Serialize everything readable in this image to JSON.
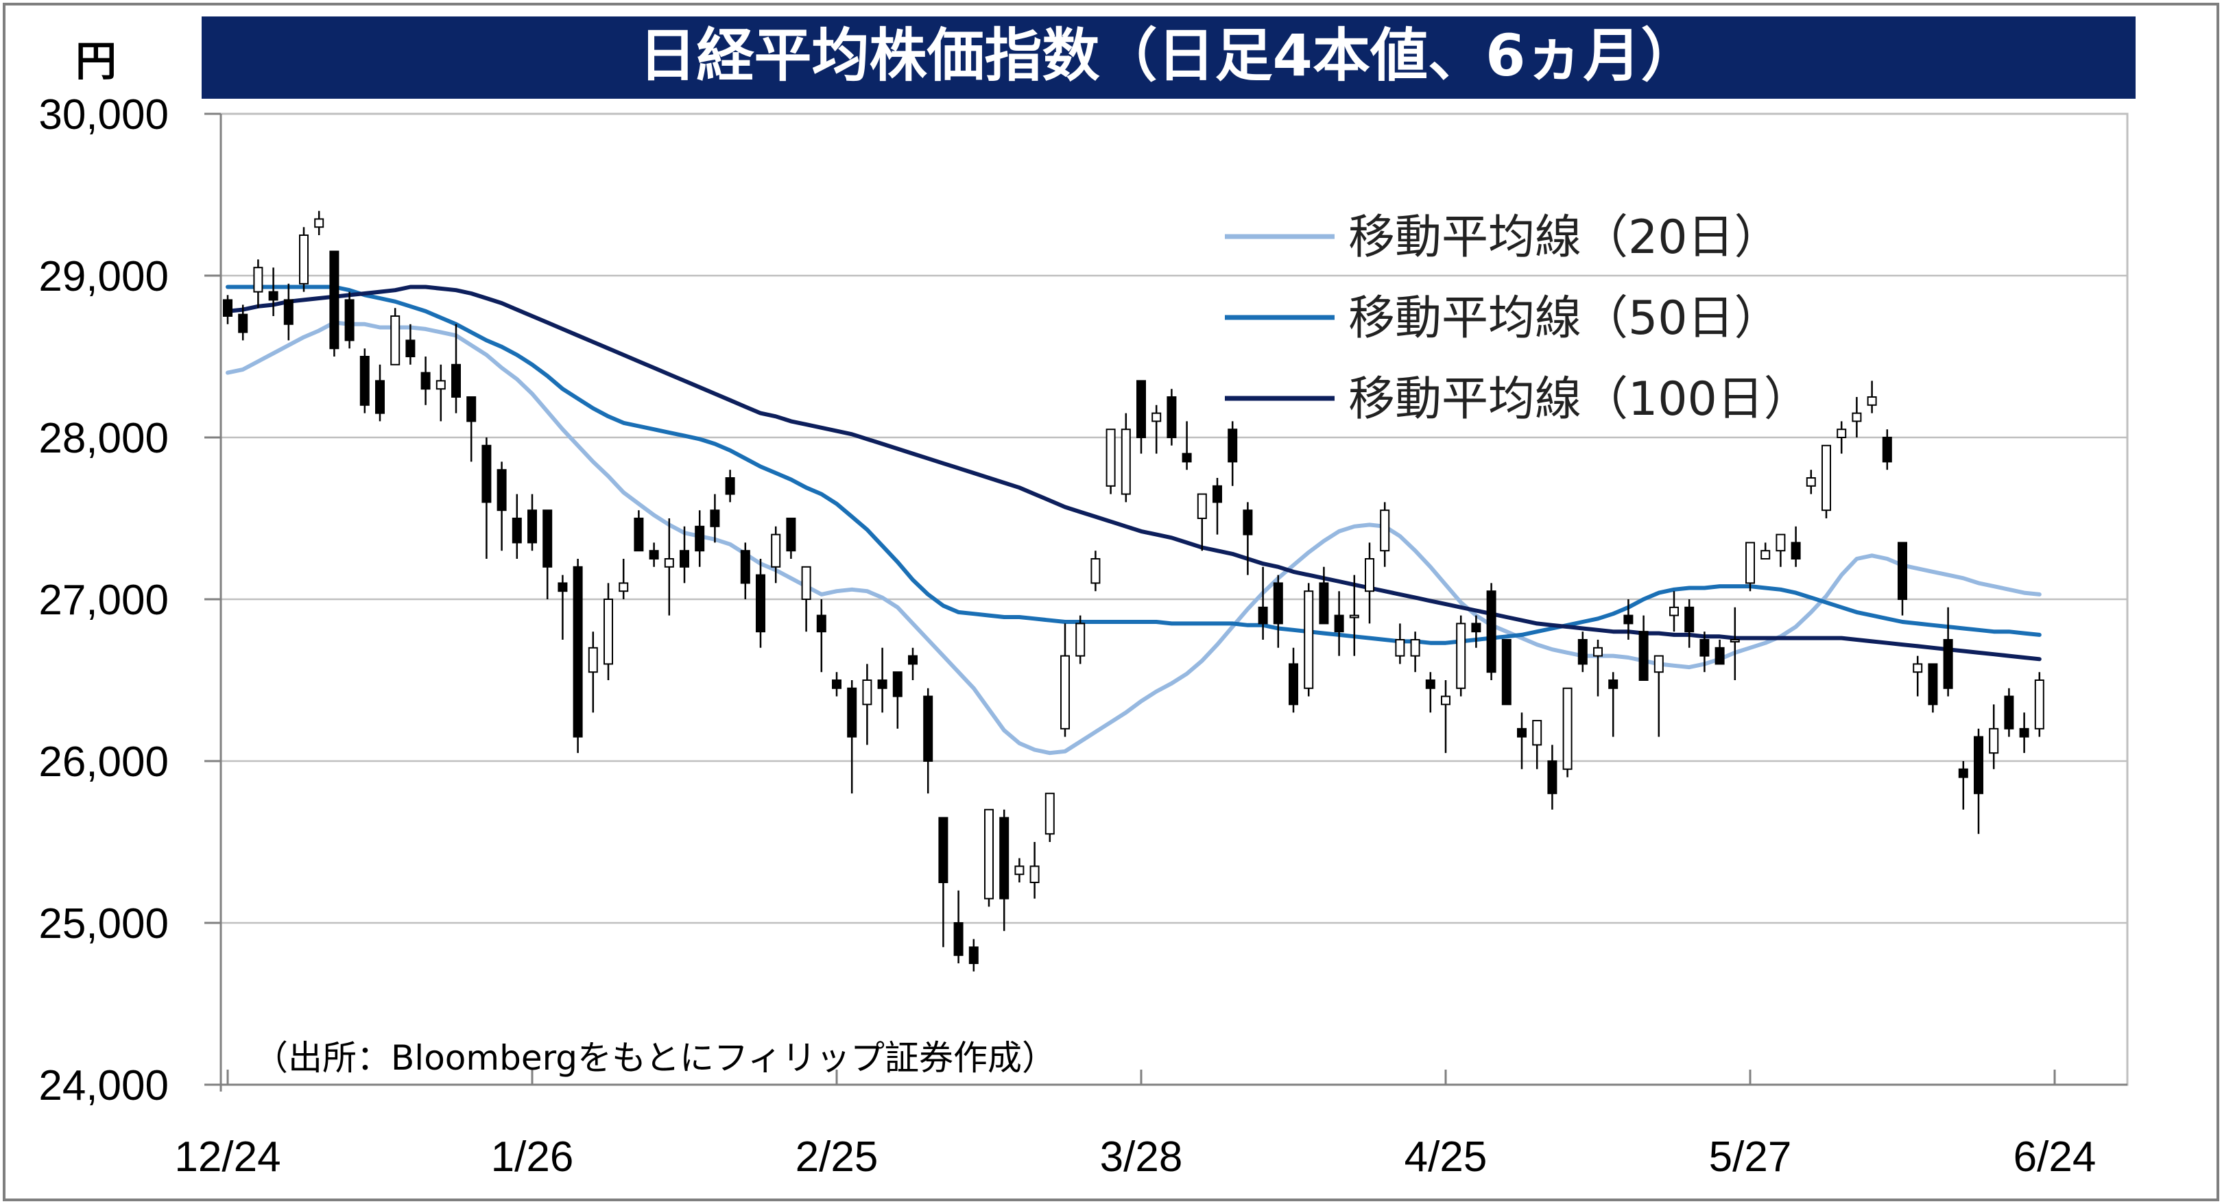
{
  "chart_data": {
    "type": "candlestick",
    "title": "日経平均株価指数（日足4本値、6ヵ月）",
    "unit": "円",
    "source": "（出所：Bloombergをもとにフィリップ証券作成）",
    "ylim": [
      24000,
      30000
    ],
    "yticks": [
      "30,000",
      "29,000",
      "28,000",
      "27,000",
      "26,000",
      "25,000",
      "24,000"
    ],
    "ytick_values": [
      30000,
      29000,
      28000,
      27000,
      26000,
      25000,
      24000
    ],
    "xticks": [
      "12/24",
      "1/26",
      "2/25",
      "3/28",
      "4/25",
      "5/27",
      "6/24"
    ],
    "xtick_index": [
      0,
      20,
      40,
      60,
      80,
      100,
      120
    ],
    "grid": true,
    "legend_position": "top-right",
    "colors": {
      "title_bg": "#0b2566",
      "title_text": "#ffffff",
      "ma20": "#96b8e0",
      "ma50": "#1a6fb5",
      "ma100": "#0d1f5c",
      "up_fill": "#ffffff",
      "down_fill": "#000000",
      "grid": "#bfbfbf",
      "axis": "#808080"
    },
    "candles": [
      [
        28850,
        28880,
        28700,
        28750
      ],
      [
        28760,
        28820,
        28600,
        28650
      ],
      [
        28900,
        29100,
        28800,
        29050
      ],
      [
        28900,
        29050,
        28750,
        28850
      ],
      [
        28850,
        28950,
        28600,
        28700
      ],
      [
        28950,
        29300,
        28900,
        29250
      ],
      [
        29300,
        29400,
        29250,
        29350
      ],
      [
        29150,
        29150,
        28500,
        28550
      ],
      [
        28850,
        28900,
        28550,
        28600
      ],
      [
        28500,
        28550,
        28150,
        28200
      ],
      [
        28350,
        28450,
        28100,
        28150
      ],
      [
        28450,
        28800,
        28450,
        28750
      ],
      [
        28600,
        28700,
        28450,
        28500
      ],
      [
        28400,
        28500,
        28200,
        28300
      ],
      [
        28300,
        28450,
        28100,
        28350
      ],
      [
        28450,
        28700,
        28150,
        28250
      ],
      [
        28250,
        28250,
        27850,
        28100
      ],
      [
        27950,
        28000,
        27250,
        27600
      ],
      [
        27800,
        27850,
        27300,
        27550
      ],
      [
        27500,
        27650,
        27250,
        27350
      ],
      [
        27550,
        27650,
        27300,
        27350
      ],
      [
        27550,
        27550,
        27000,
        27200
      ],
      [
        27100,
        27150,
        26750,
        27050
      ],
      [
        27200,
        27250,
        26050,
        26150
      ],
      [
        26550,
        26800,
        26300,
        26700
      ],
      [
        26600,
        27100,
        26500,
        27000
      ],
      [
        27050,
        27250,
        27000,
        27100
      ],
      [
        27500,
        27550,
        27300,
        27300
      ],
      [
        27300,
        27350,
        27200,
        27250
      ],
      [
        27200,
        27500,
        26900,
        27250
      ],
      [
        27300,
        27450,
        27100,
        27200
      ],
      [
        27450,
        27550,
        27200,
        27300
      ],
      [
        27550,
        27650,
        27350,
        27450
      ],
      [
        27750,
        27800,
        27600,
        27650
      ],
      [
        27300,
        27350,
        27000,
        27100
      ],
      [
        27150,
        27250,
        26700,
        26800
      ],
      [
        27200,
        27450,
        27100,
        27400
      ],
      [
        27500,
        27500,
        27250,
        27300
      ],
      [
        27000,
        27200,
        26800,
        27200
      ],
      [
        26900,
        27000,
        26550,
        26800
      ],
      [
        26500,
        26550,
        26400,
        26450
      ],
      [
        26450,
        26500,
        25800,
        26150
      ],
      [
        26350,
        26600,
        26100,
        26500
      ],
      [
        26500,
        26700,
        26300,
        26450
      ],
      [
        26550,
        26550,
        26200,
        26400
      ],
      [
        26650,
        26700,
        26500,
        26600
      ],
      [
        26400,
        26450,
        25800,
        26000
      ],
      [
        25650,
        25650,
        24850,
        25250
      ],
      [
        25000,
        25200,
        24750,
        24800
      ],
      [
        24850,
        24900,
        24700,
        24750
      ],
      [
        25150,
        25700,
        25100,
        25700
      ],
      [
        25650,
        25700,
        24950,
        25150
      ],
      [
        25300,
        25400,
        25250,
        25350
      ],
      [
        25250,
        25500,
        25150,
        25350
      ],
      [
        25550,
        25800,
        25500,
        25800
      ],
      [
        26200,
        26850,
        26150,
        26650
      ],
      [
        26650,
        26900,
        26600,
        26850
      ],
      [
        27100,
        27300,
        27050,
        27250
      ],
      [
        27700,
        28000,
        27650,
        28050
      ],
      [
        27650,
        28150,
        27600,
        28050
      ],
      [
        28350,
        28350,
        27900,
        28000
      ],
      [
        28100,
        28200,
        27900,
        28150
      ],
      [
        28250,
        28300,
        27950,
        28000
      ],
      [
        27900,
        28100,
        27800,
        27850
      ],
      [
        27500,
        27650,
        27300,
        27650
      ],
      [
        27700,
        27750,
        27400,
        27600
      ],
      [
        28050,
        28100,
        27700,
        27850
      ],
      [
        27550,
        27600,
        27150,
        27400
      ],
      [
        26950,
        27200,
        26750,
        26850
      ],
      [
        27100,
        27150,
        26700,
        26850
      ],
      [
        26600,
        26700,
        26300,
        26350
      ],
      [
        26450,
        27100,
        26400,
        27050
      ],
      [
        27100,
        27200,
        26850,
        26850
      ],
      [
        26900,
        27050,
        26650,
        26800
      ],
      [
        26900,
        27150,
        26650,
        26900
      ],
      [
        27050,
        27350,
        26850,
        27250
      ],
      [
        27300,
        27600,
        27200,
        27550
      ],
      [
        26650,
        26850,
        26600,
        26750
      ],
      [
        26650,
        26800,
        26550,
        26750
      ],
      [
        26500,
        26550,
        26300,
        26450
      ],
      [
        26350,
        26500,
        26050,
        26400
      ],
      [
        26450,
        26900,
        26400,
        26850
      ],
      [
        26850,
        26900,
        26700,
        26800
      ],
      [
        27050,
        27100,
        26500,
        26550
      ],
      [
        26750,
        26750,
        26350,
        26350
      ],
      [
        26200,
        26300,
        25950,
        26150
      ],
      [
        26100,
        26250,
        25950,
        26250
      ],
      [
        26000,
        26100,
        25700,
        25800
      ],
      [
        25950,
        26450,
        25900,
        26450
      ],
      [
        26750,
        26800,
        26550,
        26600
      ],
      [
        26650,
        26750,
        26400,
        26700
      ],
      [
        26500,
        26550,
        26150,
        26450
      ],
      [
        26900,
        27000,
        26750,
        26850
      ],
      [
        26800,
        26900,
        26500,
        26500
      ],
      [
        26550,
        26650,
        26150,
        26650
      ],
      [
        26900,
        27050,
        26800,
        26950
      ],
      [
        26950,
        27000,
        26700,
        26800
      ],
      [
        26750,
        26800,
        26550,
        26650
      ],
      [
        26700,
        26750,
        26600,
        26600
      ],
      [
        26750,
        26950,
        26500,
        26750
      ],
      [
        27100,
        27350,
        27050,
        27350
      ],
      [
        27250,
        27350,
        27250,
        27300
      ],
      [
        27300,
        27400,
        27200,
        27400
      ],
      [
        27350,
        27450,
        27200,
        27250
      ],
      [
        27700,
        27800,
        27650,
        27750
      ],
      [
        27550,
        27950,
        27500,
        27950
      ],
      [
        28000,
        28100,
        27900,
        28050
      ],
      [
        28100,
        28250,
        28000,
        28150
      ],
      [
        28200,
        28350,
        28150,
        28250
      ],
      [
        28000,
        28050,
        27800,
        27850
      ],
      [
        27350,
        27350,
        26900,
        27000
      ],
      [
        26550,
        26650,
        26400,
        26600
      ],
      [
        26600,
        26600,
        26300,
        26350
      ],
      [
        26750,
        26950,
        26400,
        26450
      ],
      [
        25950,
        26000,
        25700,
        25900
      ],
      [
        26150,
        26200,
        25550,
        25800
      ],
      [
        26050,
        26350,
        25950,
        26200
      ],
      [
        26400,
        26450,
        26150,
        26200
      ],
      [
        26200,
        26300,
        26050,
        26150
      ],
      [
        26200,
        26550,
        26150,
        26500
      ]
    ],
    "series": [
      {
        "name": "移動平均線（20日）",
        "color": "#96b8e0",
        "values": [
          28400,
          28420,
          28470,
          28520,
          28570,
          28620,
          28660,
          28710,
          28700,
          28700,
          28680,
          28680,
          28680,
          28670,
          28650,
          28630,
          28570,
          28510,
          28430,
          28360,
          28270,
          28160,
          28050,
          27950,
          27850,
          27760,
          27660,
          27590,
          27520,
          27460,
          27410,
          27390,
          27370,
          27340,
          27280,
          27220,
          27180,
          27130,
          27080,
          27030,
          27050,
          27060,
          27050,
          27010,
          26950,
          26850,
          26750,
          26650,
          26550,
          26450,
          26320,
          26190,
          26110,
          26070,
          26050,
          26060,
          26120,
          26180,
          26240,
          26300,
          26370,
          26430,
          26480,
          26540,
          26620,
          26720,
          26830,
          26940,
          27040,
          27130,
          27210,
          27290,
          27360,
          27420,
          27450,
          27460,
          27450,
          27390,
          27300,
          27200,
          27090,
          26980,
          26900,
          26840,
          26800,
          26760,
          26720,
          26690,
          26670,
          26650,
          26650,
          26650,
          26640,
          26620,
          26600,
          26590,
          26580,
          26600,
          26630,
          26670,
          26700,
          26730,
          26770,
          26830,
          26920,
          27020,
          27150,
          27250,
          27270,
          27250,
          27210,
          27190,
          27170,
          27150,
          27130,
          27100,
          27080,
          27060,
          27040,
          27030
        ]
      },
      {
        "name": "移動平均線（50日）",
        "color": "#1a6fb5",
        "values": [
          28930,
          28930,
          28930,
          28930,
          28930,
          28930,
          28930,
          28930,
          28910,
          28880,
          28860,
          28840,
          28810,
          28780,
          28740,
          28700,
          28650,
          28600,
          28560,
          28510,
          28450,
          28380,
          28300,
          28240,
          28180,
          28130,
          28090,
          28070,
          28050,
          28030,
          28010,
          27990,
          27960,
          27920,
          27870,
          27820,
          27780,
          27740,
          27690,
          27650,
          27590,
          27510,
          27430,
          27330,
          27230,
          27120,
          27030,
          26960,
          26920,
          26910,
          26900,
          26890,
          26890,
          26880,
          26870,
          26860,
          26860,
          26860,
          26860,
          26860,
          26860,
          26860,
          26850,
          26850,
          26850,
          26850,
          26850,
          26840,
          26840,
          26820,
          26810,
          26800,
          26790,
          26780,
          26770,
          26760,
          26750,
          26740,
          26740,
          26730,
          26730,
          26740,
          26750,
          26760,
          26770,
          26780,
          26800,
          26820,
          26840,
          26860,
          26880,
          26910,
          26950,
          27000,
          27040,
          27060,
          27070,
          27070,
          27080,
          27080,
          27080,
          27070,
          27060,
          27040,
          27010,
          26980,
          26950,
          26920,
          26900,
          26880,
          26860,
          26850,
          26840,
          26830,
          26820,
          26810,
          26800,
          26800,
          26790,
          26780
        ]
      },
      {
        "name": "移動平均線（100日）",
        "color": "#0d1f5c",
        "values": [
          28780,
          28790,
          28810,
          28820,
          28840,
          28850,
          28860,
          28870,
          28880,
          28890,
          28900,
          28910,
          28930,
          28930,
          28920,
          28910,
          28890,
          28860,
          28830,
          28790,
          28750,
          28710,
          28670,
          28630,
          28590,
          28550,
          28510,
          28470,
          28430,
          28390,
          28350,
          28310,
          28270,
          28230,
          28190,
          28150,
          28130,
          28100,
          28080,
          28060,
          28040,
          28020,
          27990,
          27960,
          27930,
          27900,
          27870,
          27840,
          27810,
          27780,
          27750,
          27720,
          27690,
          27650,
          27610,
          27570,
          27540,
          27510,
          27480,
          27450,
          27420,
          27400,
          27380,
          27350,
          27320,
          27300,
          27280,
          27250,
          27220,
          27200,
          27170,
          27150,
          27130,
          27110,
          27090,
          27070,
          27050,
          27030,
          27010,
          26990,
          26970,
          26950,
          26930,
          26910,
          26890,
          26870,
          26850,
          26840,
          26830,
          26820,
          26810,
          26800,
          26800,
          26790,
          26790,
          26780,
          26780,
          26770,
          26770,
          26760,
          26760,
          26760,
          26760,
          26760,
          26760,
          26760,
          26760,
          26750,
          26740,
          26730,
          26720,
          26710,
          26700,
          26690,
          26680,
          26670,
          26660,
          26650,
          26640,
          26630
        ]
      }
    ]
  }
}
